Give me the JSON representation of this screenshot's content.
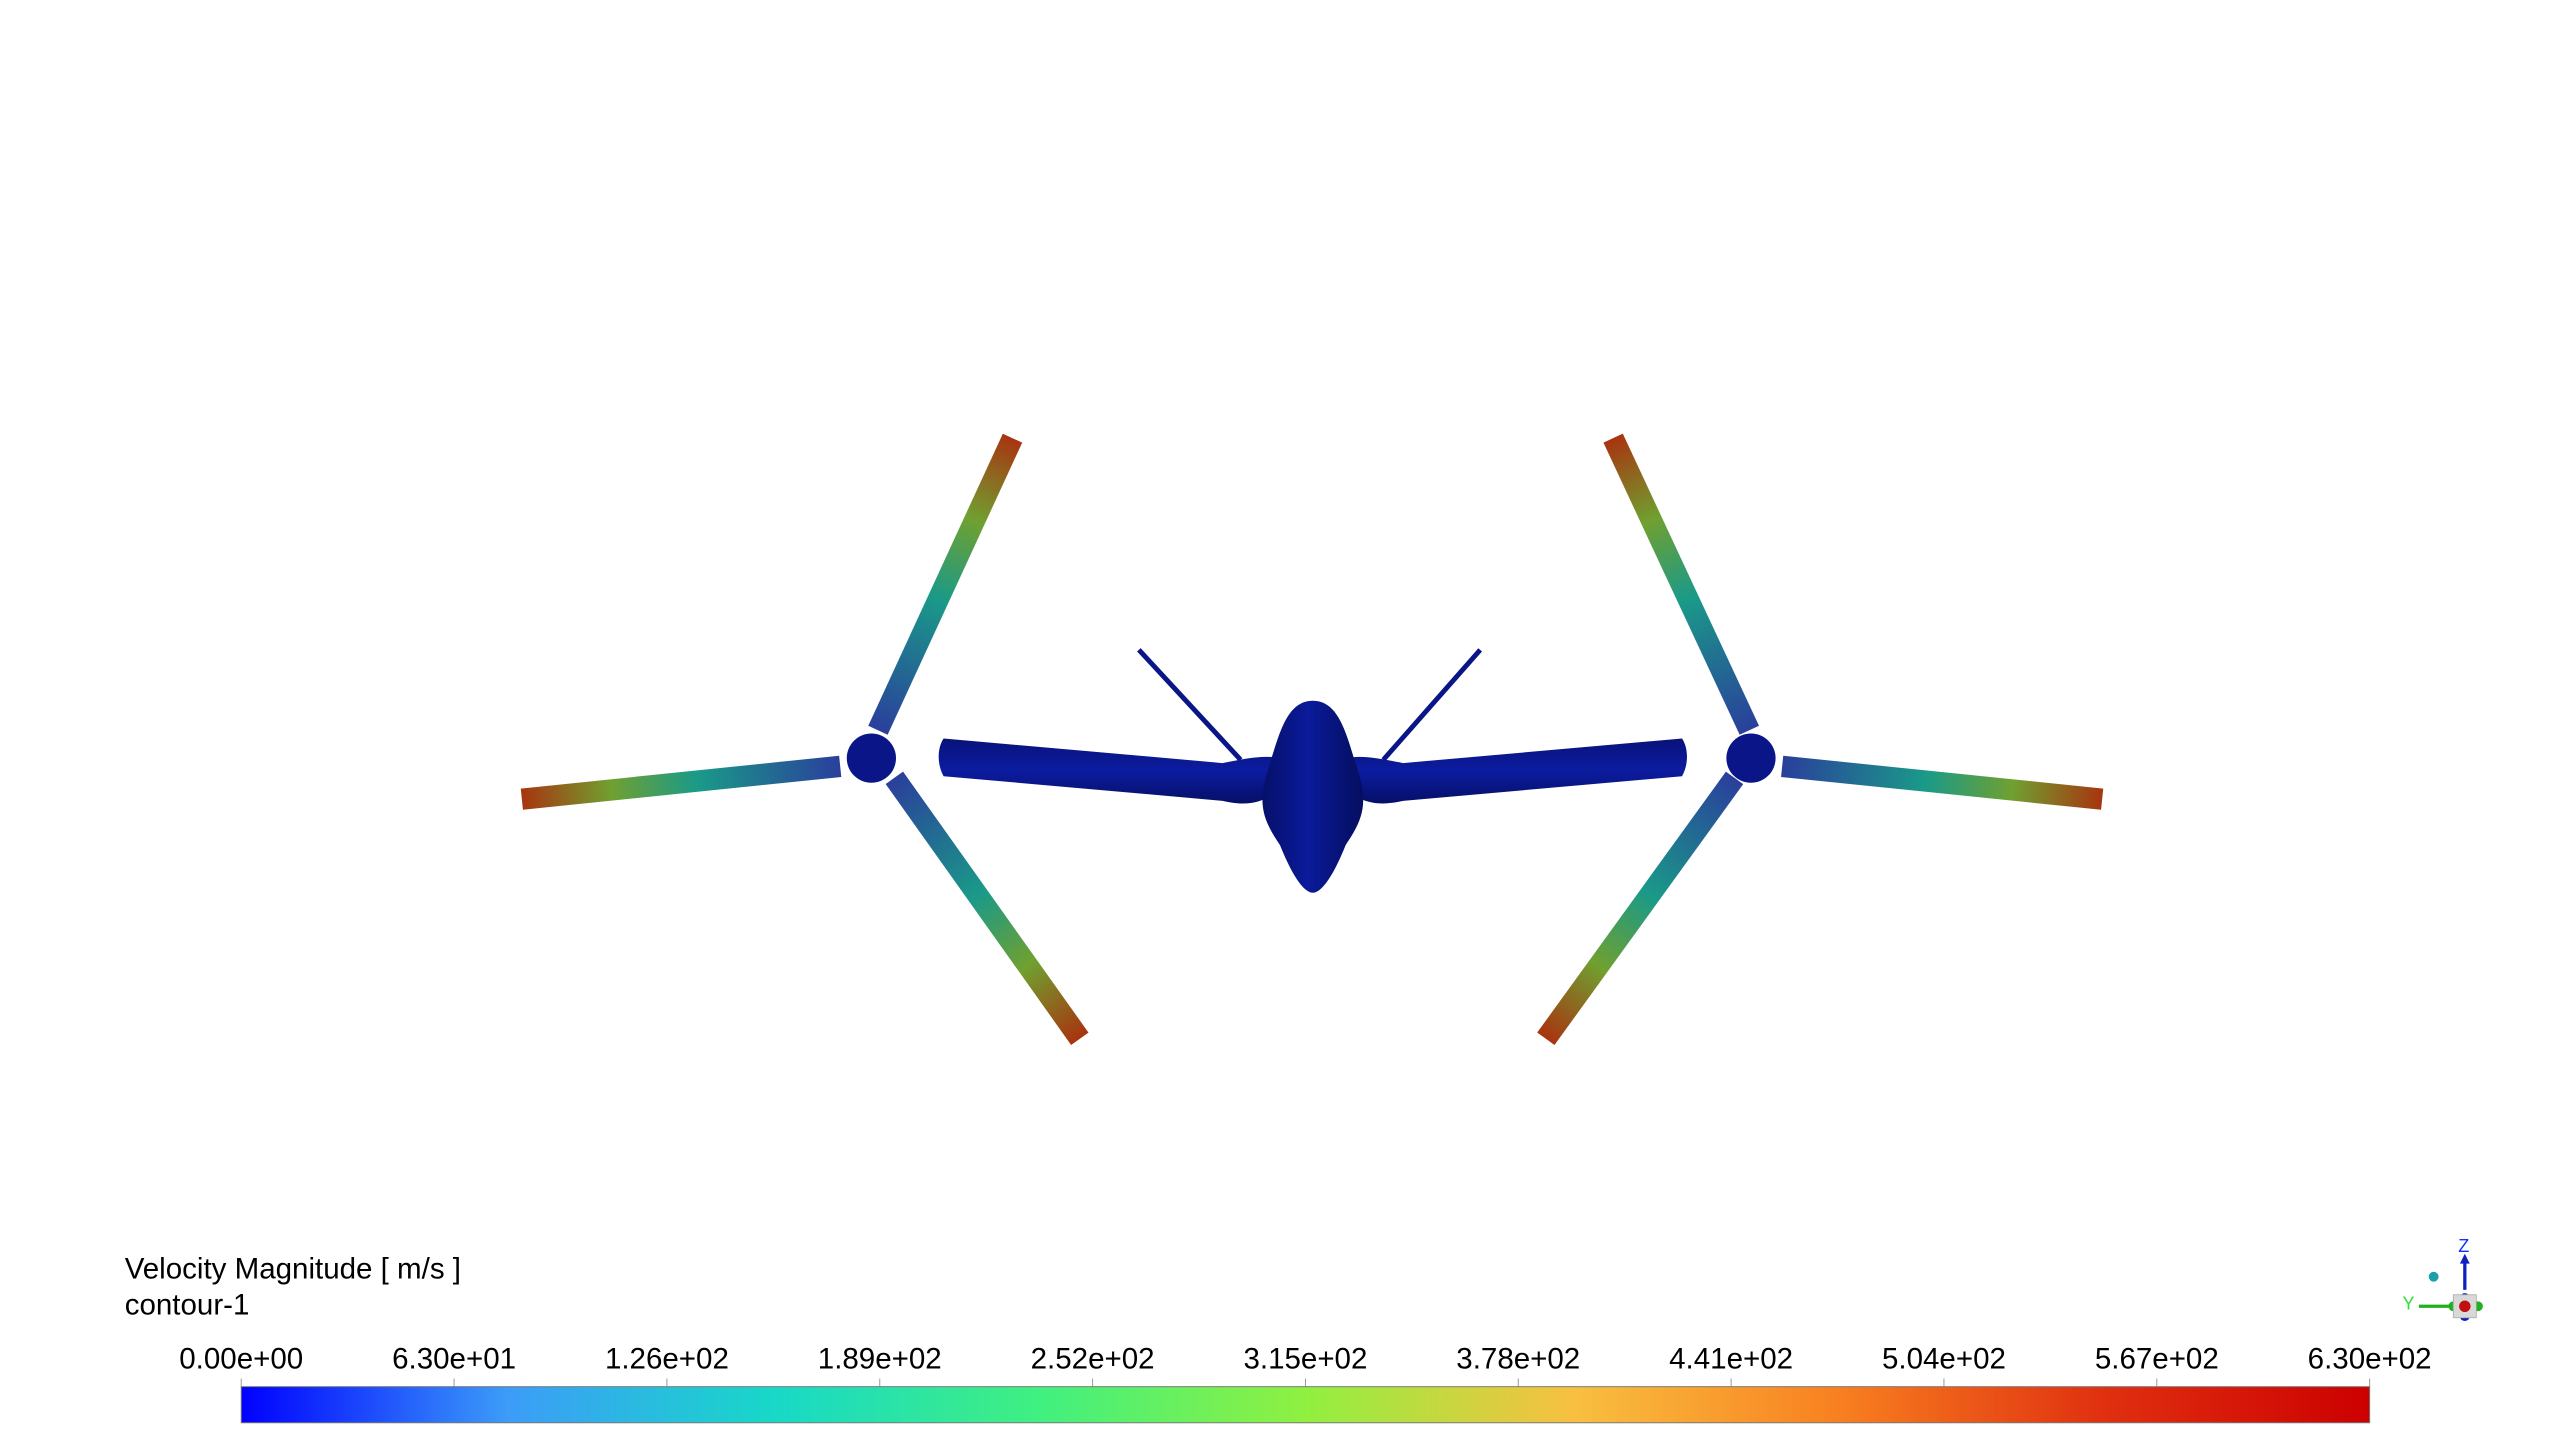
{
  "legend": {
    "title": "Velocity Magnitude [ m/s ]",
    "subtitle": "contour-1",
    "tick_labels": [
      "0.00e+00",
      "6.30e+01",
      "1.26e+02",
      "1.89e+02",
      "2.52e+02",
      "3.15e+02",
      "3.78e+02",
      "4.41e+02",
      "5.04e+02",
      "5.67e+02",
      "6.30e+02"
    ],
    "range": [
      0,
      630
    ],
    "colormap": [
      "#0000ff",
      "#3c9cf8",
      "#18d8c8",
      "#40f080",
      "#90f040",
      "#f8c040",
      "#f88020",
      "#e03010",
      "#cc0000"
    ]
  },
  "model": {
    "body_color": "#0a1688",
    "blade_colors": {
      "root": "#2a3f9c",
      "mid": "#1a9a88",
      "upper": "#70a030",
      "tip": "#a83410"
    }
  },
  "triad": {
    "z_label": "Z",
    "y_label": "Y"
  }
}
